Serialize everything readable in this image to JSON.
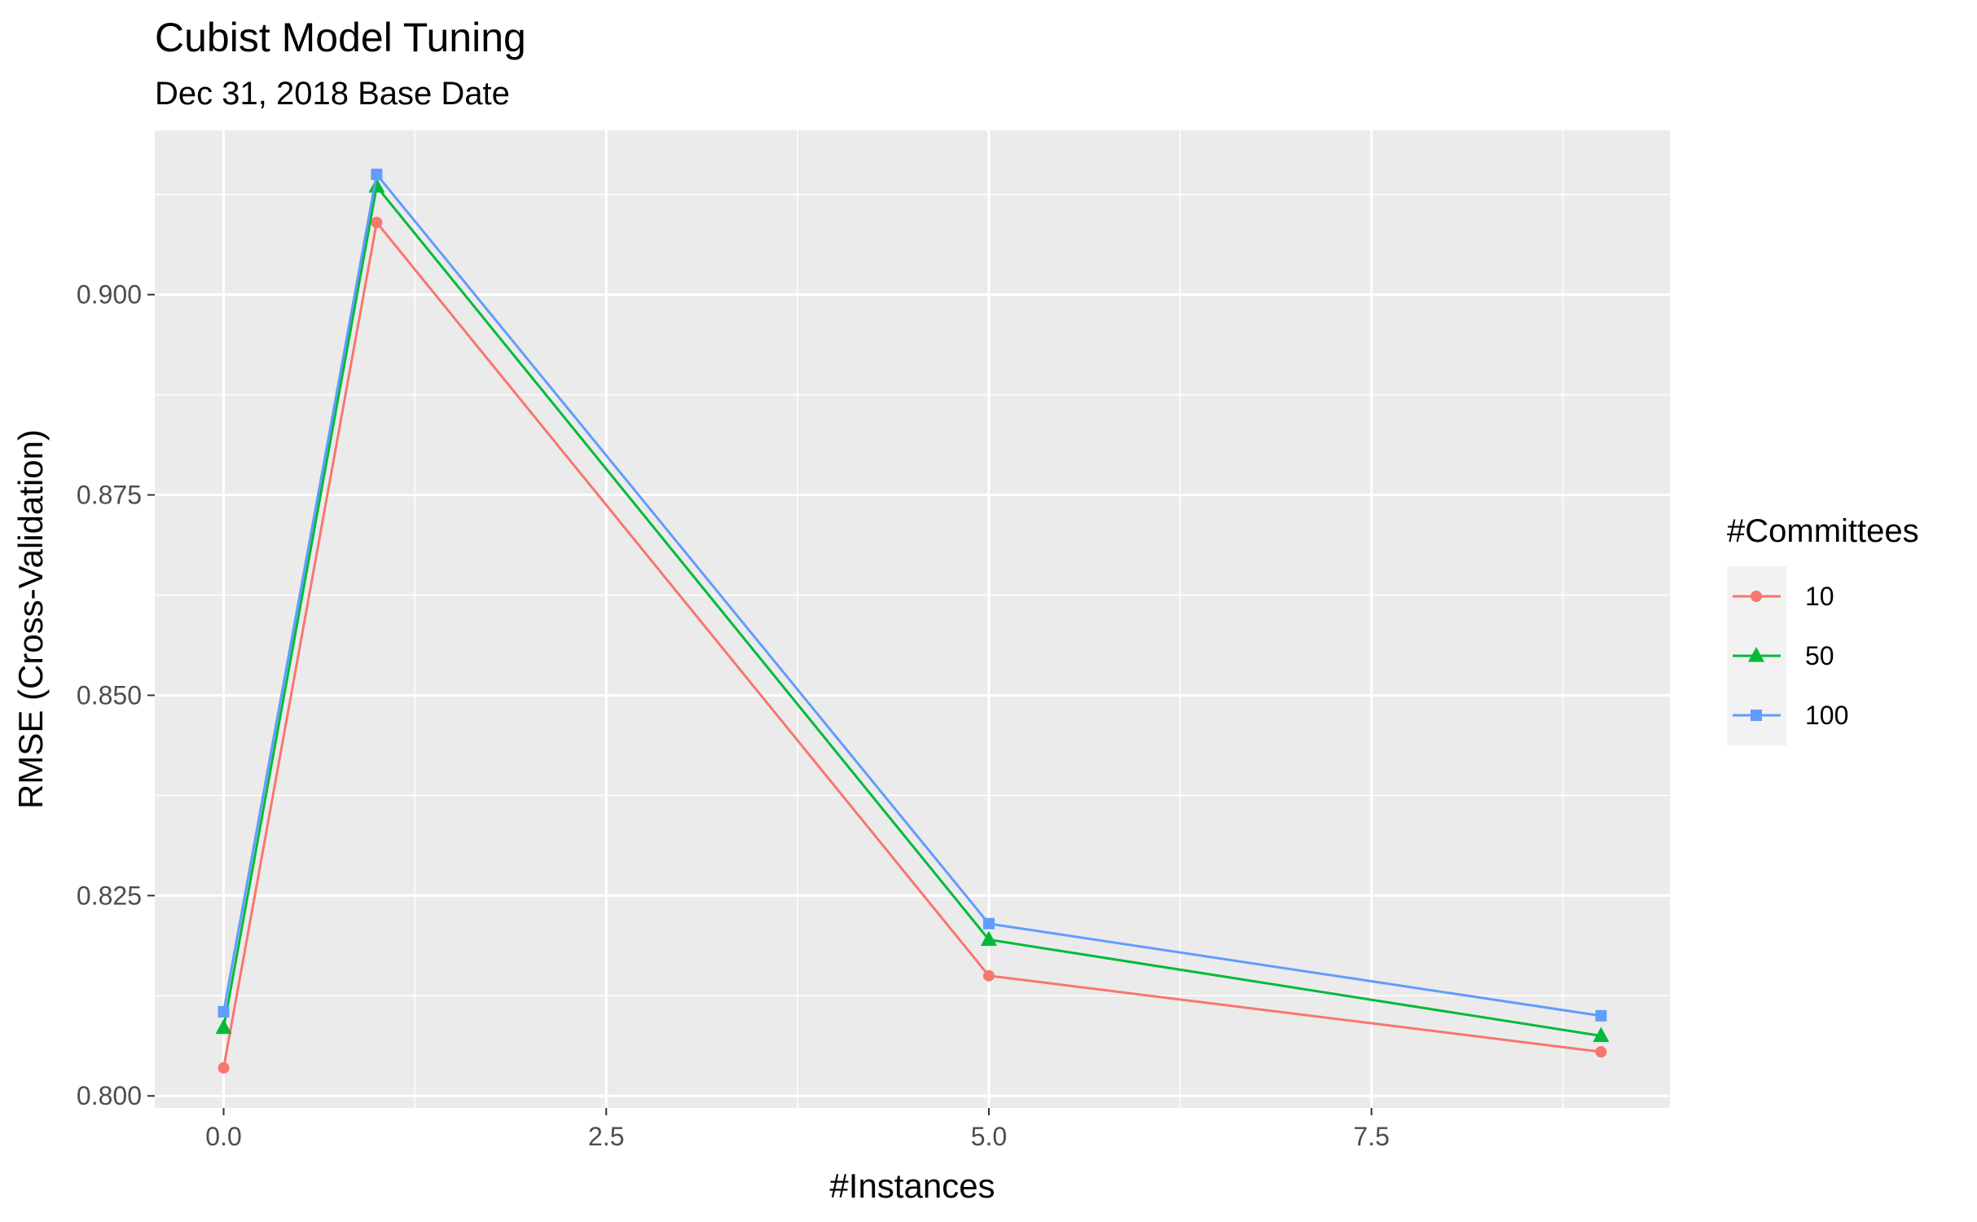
{
  "chart_data": {
    "type": "line",
    "title": "Cubist Model Tuning",
    "subtitle": "Dec 31, 2018 Base Date",
    "xlabel": "#Instances",
    "ylabel": "RMSE (Cross-Validation)",
    "x": [
      0,
      1,
      5,
      9
    ],
    "xlim": [
      -0.45,
      9.45
    ],
    "ylim": [
      0.7985,
      0.9205
    ],
    "x_ticks": [
      0,
      2.5,
      5,
      7.5
    ],
    "x_tick_labels": [
      "0.0",
      "2.5",
      "5.0",
      "7.5"
    ],
    "y_ticks": [
      0.8,
      0.825,
      0.85,
      0.875,
      0.9
    ],
    "y_tick_labels": [
      "0.800",
      "0.825",
      "0.850",
      "0.875",
      "0.900"
    ],
    "grid": true,
    "legend_title": "#Committees",
    "legend_position": "right",
    "series": [
      {
        "name": "10",
        "color": "#F8766D",
        "marker": "circle",
        "values": [
          0.8035,
          0.909,
          0.815,
          0.8055
        ]
      },
      {
        "name": "50",
        "color": "#00BA38",
        "marker": "triangle",
        "values": [
          0.8085,
          0.9135,
          0.8195,
          0.8075
        ]
      },
      {
        "name": "100",
        "color": "#619CFF",
        "marker": "square",
        "values": [
          0.8105,
          0.915,
          0.8215,
          0.81
        ]
      }
    ]
  }
}
